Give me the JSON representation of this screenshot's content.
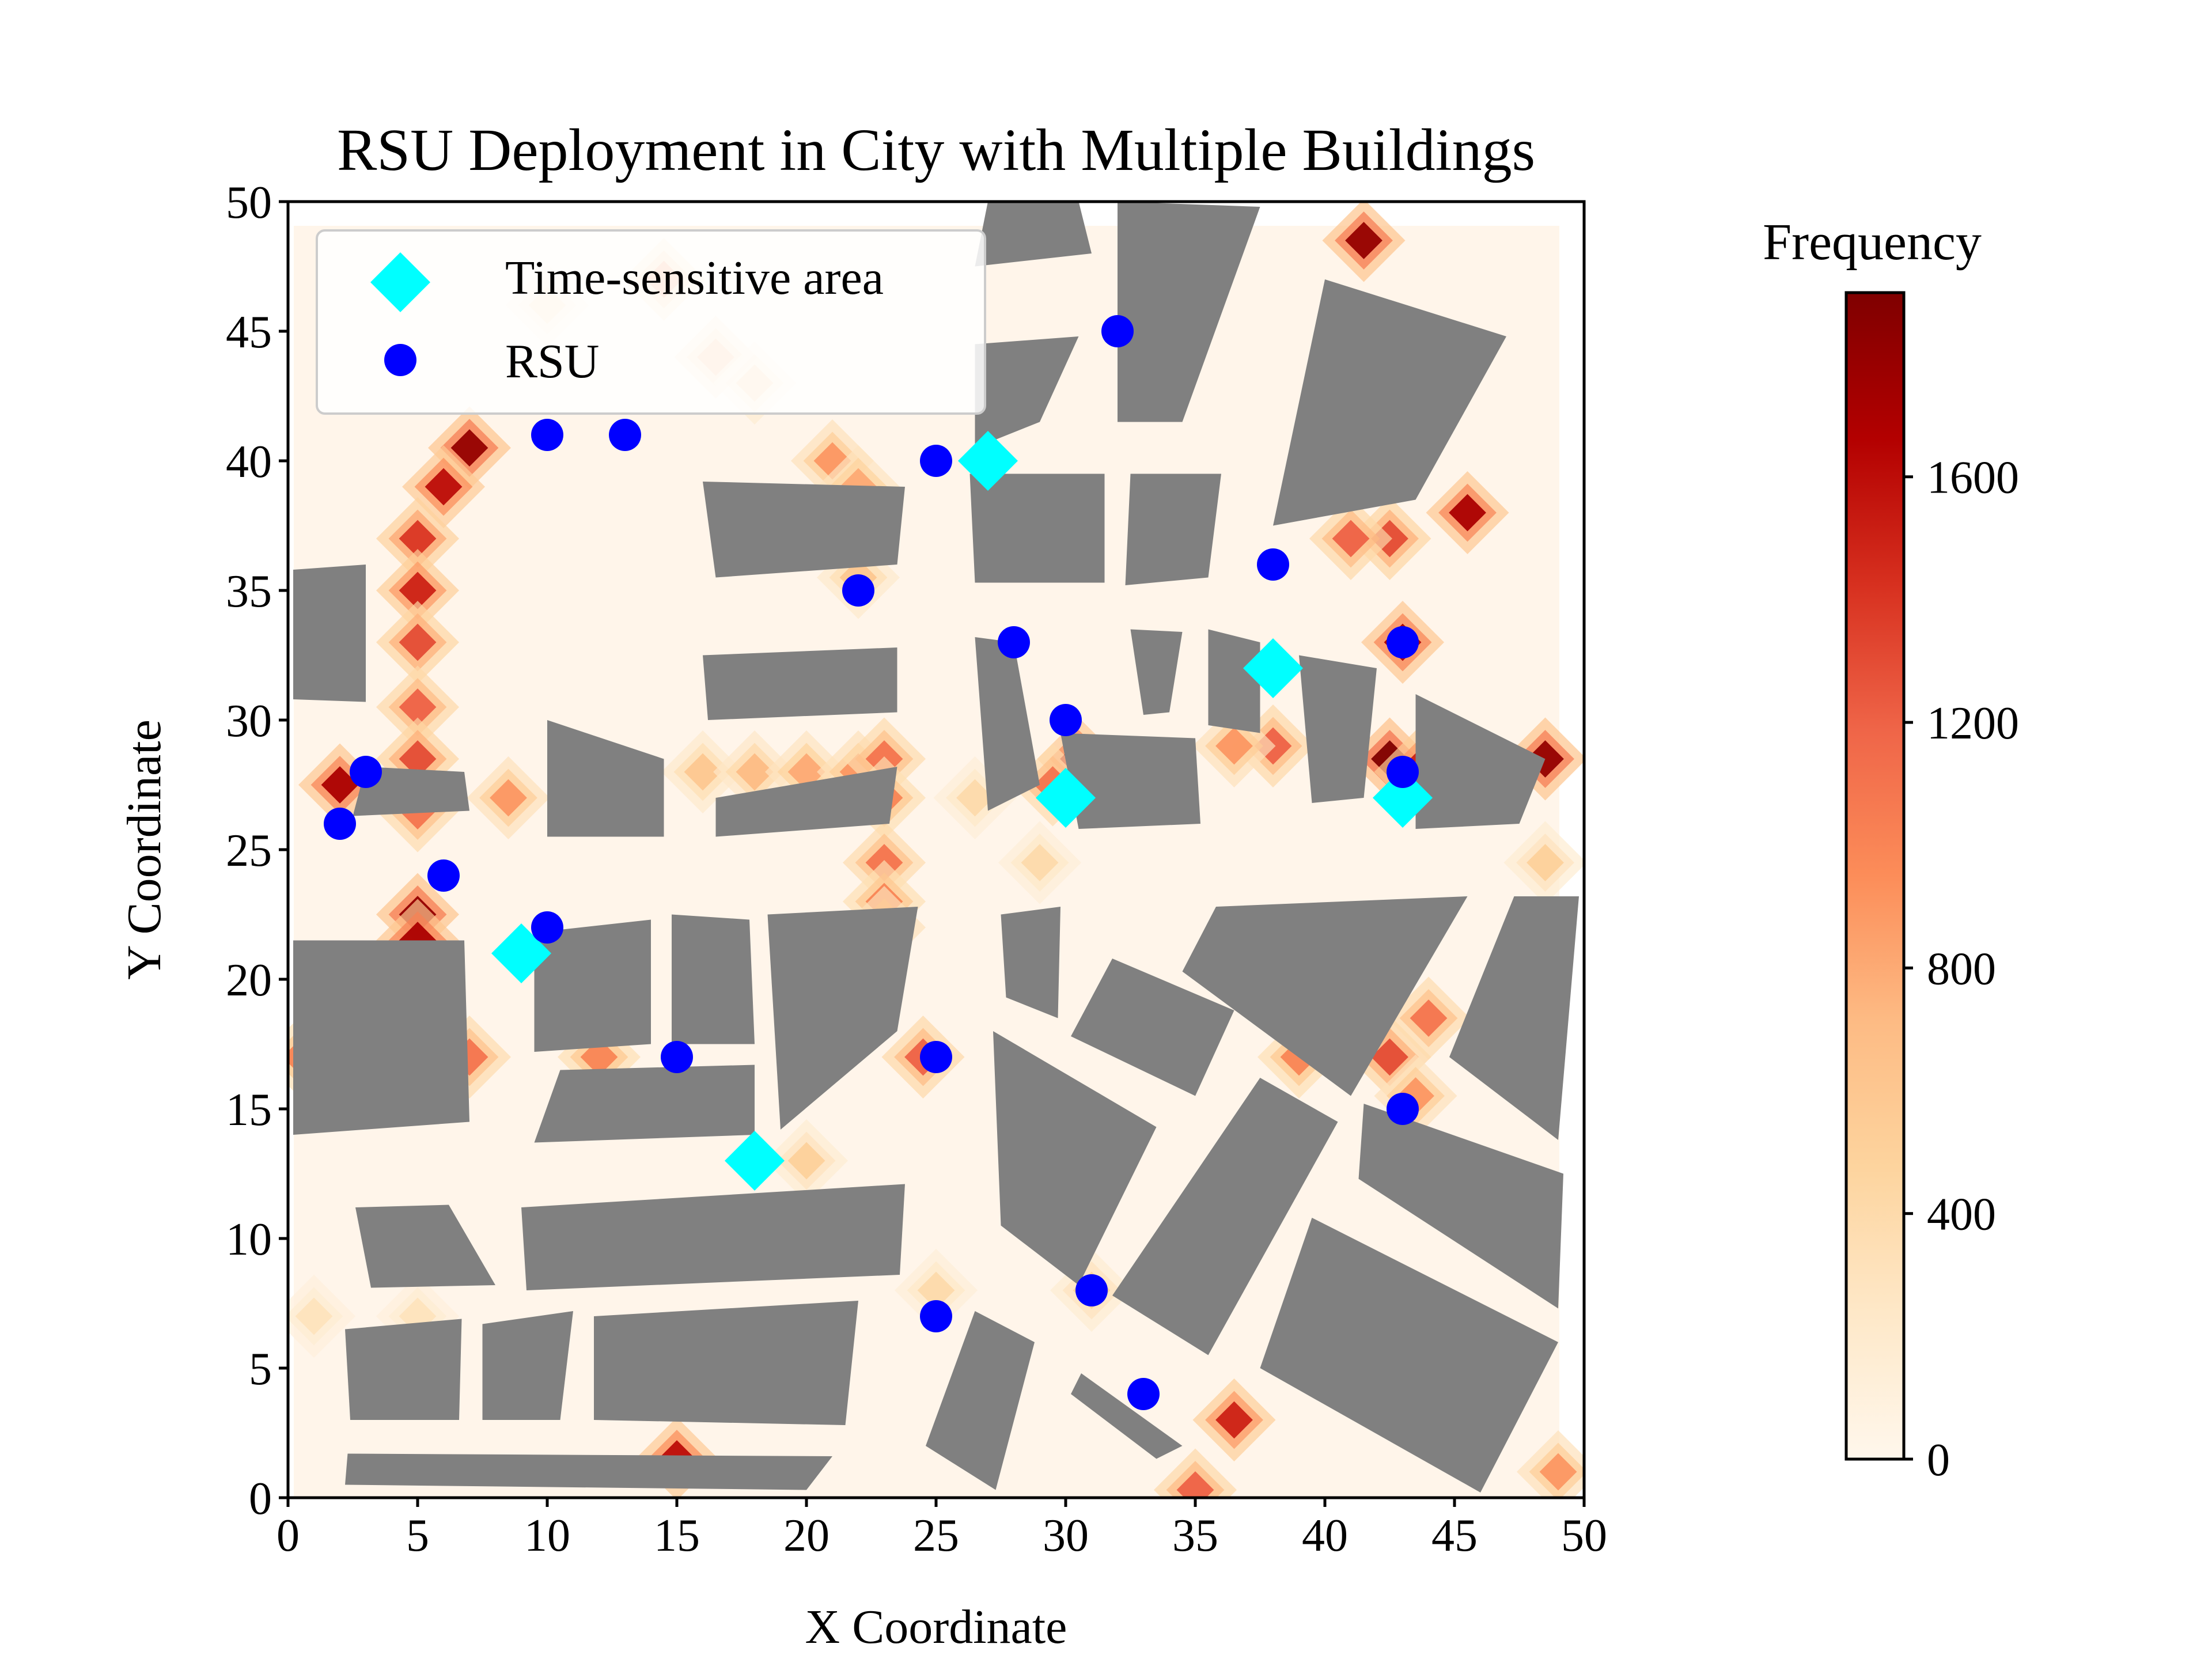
{
  "chart_data": {
    "type": "scatter",
    "title": "RSU Deployment in City with Multiple Buildings",
    "xlabel": "X Coordinate",
    "ylabel": "Y Coordinate",
    "xlim": [
      0,
      50
    ],
    "ylim": [
      0,
      50
    ],
    "x_ticks": [
      "0",
      "5",
      "10",
      "15",
      "20",
      "25",
      "30",
      "35",
      "40",
      "45",
      "50"
    ],
    "y_ticks": [
      "0",
      "5",
      "10",
      "15",
      "20",
      "25",
      "30",
      "35",
      "40",
      "45",
      "50"
    ],
    "grid": false,
    "legend_position": "top-left",
    "series": [
      {
        "name": "Time-sensitive area",
        "marker": "diamond",
        "color": "#00ffff",
        "points": [
          [
            27,
            40
          ],
          [
            38,
            32
          ],
          [
            30,
            27
          ],
          [
            43,
            27
          ],
          [
            9,
            21
          ],
          [
            18,
            13
          ]
        ]
      },
      {
        "name": "RSU",
        "marker": "circle",
        "color": "#0000ff",
        "points": [
          [
            32,
            45
          ],
          [
            10,
            41
          ],
          [
            13,
            41
          ],
          [
            25,
            40
          ],
          [
            22,
            35
          ],
          [
            38,
            36
          ],
          [
            28,
            33
          ],
          [
            43,
            33
          ],
          [
            30,
            30
          ],
          [
            3,
            28
          ],
          [
            43,
            28
          ],
          [
            2,
            26
          ],
          [
            6,
            24
          ],
          [
            10,
            22
          ],
          [
            15,
            17
          ],
          [
            25,
            17
          ],
          [
            43,
            15
          ],
          [
            25,
            7
          ],
          [
            31,
            8
          ],
          [
            33,
            4
          ]
        ]
      }
    ],
    "buildings": {
      "color": "#808080",
      "polygons": [
        [
          [
            26.5,
            47.5
          ],
          [
            31,
            48
          ],
          [
            30.5,
            50
          ],
          [
            27,
            50
          ]
        ],
        [
          [
            32,
            50
          ],
          [
            37.5,
            49.8
          ],
          [
            34.5,
            41.5
          ],
          [
            32,
            41.5
          ]
        ],
        [
          [
            26.5,
            44.5
          ],
          [
            30.5,
            44.8
          ],
          [
            29,
            41.5
          ],
          [
            26.5,
            40.5
          ]
        ],
        [
          [
            40,
            47
          ],
          [
            47,
            44.8
          ],
          [
            43.5,
            38.5
          ],
          [
            38,
            37.5
          ]
        ],
        [
          [
            16,
            39.2
          ],
          [
            23.8,
            39
          ],
          [
            23.5,
            36
          ],
          [
            16.5,
            35.5
          ]
        ],
        [
          [
            26.3,
            39.5
          ],
          [
            31.5,
            39.5
          ],
          [
            31.5,
            35.3
          ],
          [
            26.5,
            35.3
          ]
        ],
        [
          [
            32.5,
            39.5
          ],
          [
            36,
            39.5
          ],
          [
            35.5,
            35.5
          ],
          [
            32.3,
            35.2
          ]
        ],
        [
          [
            0.2,
            35.8
          ],
          [
            3,
            36
          ],
          [
            3,
            30.7
          ],
          [
            0.2,
            30.8
          ]
        ],
        [
          [
            16,
            32.5
          ],
          [
            23.5,
            32.8
          ],
          [
            23.5,
            30.3
          ],
          [
            16.2,
            30
          ]
        ],
        [
          [
            26.5,
            33.2
          ],
          [
            28,
            33
          ],
          [
            29,
            27.5
          ],
          [
            27,
            26.5
          ]
        ],
        [
          [
            32.5,
            33.5
          ],
          [
            34.5,
            33.4
          ],
          [
            34,
            30.3
          ],
          [
            33,
            30.2
          ]
        ],
        [
          [
            35.5,
            33.5
          ],
          [
            37.5,
            33
          ],
          [
            37.5,
            29.5
          ],
          [
            35.5,
            29.8
          ]
        ],
        [
          [
            39,
            32.5
          ],
          [
            42,
            32
          ],
          [
            41.5,
            27
          ],
          [
            39.5,
            26.8
          ]
        ],
        [
          [
            43.5,
            31
          ],
          [
            48.5,
            28.5
          ],
          [
            47.5,
            26
          ],
          [
            43.5,
            25.8
          ]
        ],
        [
          [
            3,
            28.2
          ],
          [
            6.8,
            28
          ],
          [
            7,
            26.5
          ],
          [
            2.5,
            26.3
          ]
        ],
        [
          [
            10,
            30
          ],
          [
            14.5,
            28.5
          ],
          [
            14.5,
            25.5
          ],
          [
            10,
            25.5
          ]
        ],
        [
          [
            16.5,
            27
          ],
          [
            23.5,
            28.2
          ],
          [
            23.2,
            26
          ],
          [
            16.5,
            25.5
          ]
        ],
        [
          [
            29.8,
            29.5
          ],
          [
            35,
            29.3
          ],
          [
            35.2,
            26
          ],
          [
            30.5,
            25.8
          ]
        ],
        [
          [
            0.2,
            21.5
          ],
          [
            6.8,
            21.5
          ],
          [
            7,
            14.5
          ],
          [
            0.2,
            14
          ]
        ],
        [
          [
            9.5,
            21.8
          ],
          [
            14,
            22.3
          ],
          [
            14,
            17.5
          ],
          [
            9.5,
            17.2
          ]
        ],
        [
          [
            14.8,
            22.5
          ],
          [
            17.8,
            22.3
          ],
          [
            18,
            17.5
          ],
          [
            14.8,
            17.5
          ]
        ],
        [
          [
            18.5,
            22.5
          ],
          [
            24.3,
            22.8
          ],
          [
            23.5,
            18
          ],
          [
            19,
            14.2
          ]
        ],
        [
          [
            27.5,
            22.5
          ],
          [
            29.8,
            22.8
          ],
          [
            29.7,
            18.5
          ],
          [
            27.7,
            19.3
          ]
        ],
        [
          [
            31.8,
            20.8
          ],
          [
            36.5,
            18.8
          ],
          [
            35,
            15.5
          ],
          [
            30.2,
            17.8
          ]
        ],
        [
          [
            35.8,
            22.8
          ],
          [
            45.5,
            23.2
          ],
          [
            41,
            15.5
          ],
          [
            34.5,
            20.3
          ]
        ],
        [
          [
            47.3,
            23.2
          ],
          [
            49.8,
            23.2
          ],
          [
            49,
            13.8
          ],
          [
            44.8,
            17
          ]
        ],
        [
          [
            10.5,
            16.5
          ],
          [
            18,
            16.7
          ],
          [
            18,
            14
          ],
          [
            9.5,
            13.7
          ]
        ],
        [
          [
            27.2,
            18
          ],
          [
            33.5,
            14.3
          ],
          [
            30.5,
            8.2
          ],
          [
            27.5,
            10.5
          ]
        ],
        [
          [
            37.5,
            16.2
          ],
          [
            40.5,
            14.5
          ],
          [
            35.5,
            5.5
          ],
          [
            31.8,
            7.8
          ]
        ],
        [
          [
            41.5,
            15.2
          ],
          [
            49.2,
            12.5
          ],
          [
            49,
            7.3
          ],
          [
            41.3,
            12.3
          ]
        ],
        [
          [
            2.6,
            11.2
          ],
          [
            6.2,
            11.3
          ],
          [
            8,
            8.2
          ],
          [
            3.2,
            8.1
          ]
        ],
        [
          [
            9,
            11.2
          ],
          [
            23.8,
            12.1
          ],
          [
            23.6,
            8.6
          ],
          [
            9.2,
            8
          ]
        ],
        [
          [
            2.2,
            6.5
          ],
          [
            6.7,
            6.9
          ],
          [
            6.6,
            3
          ],
          [
            2.4,
            3
          ]
        ],
        [
          [
            7.5,
            6.7
          ],
          [
            11,
            7.2
          ],
          [
            10.5,
            3
          ],
          [
            7.5,
            3
          ]
        ],
        [
          [
            11.8,
            7
          ],
          [
            22,
            7.6
          ],
          [
            21.5,
            2.8
          ],
          [
            11.8,
            3
          ]
        ],
        [
          [
            26.5,
            7.2
          ],
          [
            28.8,
            6
          ],
          [
            27.3,
            0.3
          ],
          [
            24.6,
            2
          ]
        ],
        [
          [
            30.6,
            4.8
          ],
          [
            34.5,
            2
          ],
          [
            33.5,
            1.5
          ],
          [
            30.2,
            4
          ]
        ],
        [
          [
            39.5,
            10.8
          ],
          [
            49,
            6
          ],
          [
            46,
            0.2
          ],
          [
            37.5,
            5
          ]
        ],
        [
          [
            2.3,
            1.7
          ],
          [
            21,
            1.6
          ],
          [
            20,
            0.3
          ],
          [
            2.2,
            0.5
          ]
        ]
      ]
    },
    "heatmap": {
      "colormap": "OrRd",
      "colorbar_label": "Frequency",
      "colorbar_ticks": [
        "0",
        "400",
        "800",
        "1200",
        "1600"
      ],
      "vmin": 0,
      "vmax": 1900,
      "hotspots": [
        [
          41.5,
          48.5,
          1800
        ],
        [
          45.5,
          38,
          1700
        ],
        [
          42.5,
          37,
          1300
        ],
        [
          41,
          37,
          1200
        ],
        [
          43,
          33,
          1700
        ],
        [
          48.5,
          28.5,
          1800
        ],
        [
          42.5,
          28.5,
          1900
        ],
        [
          43.5,
          28,
          1500
        ],
        [
          30.5,
          28.5,
          1600
        ],
        [
          38,
          29,
          1200
        ],
        [
          36.5,
          29,
          900
        ],
        [
          29.5,
          27.5,
          1100
        ],
        [
          7,
          40.5,
          1800
        ],
        [
          6,
          39,
          1600
        ],
        [
          5,
          37,
          1400
        ],
        [
          5,
          35,
          1500
        ],
        [
          5,
          33,
          1300
        ],
        [
          5,
          30.5,
          1200
        ],
        [
          5,
          28.5,
          1300
        ],
        [
          5,
          26.5,
          1100
        ],
        [
          2,
          27.5,
          1700
        ],
        [
          5,
          22.5,
          1800
        ],
        [
          5,
          21.5,
          1700
        ],
        [
          8.5,
          27,
          900
        ],
        [
          16,
          28,
          600
        ],
        [
          18,
          28,
          700
        ],
        [
          20,
          28,
          800
        ],
        [
          22,
          28,
          900
        ],
        [
          23,
          28.5,
          1100
        ],
        [
          23,
          27,
          1000
        ],
        [
          23,
          24.5,
          1100
        ],
        [
          23,
          23,
          1000
        ],
        [
          23,
          22,
          900
        ],
        [
          22,
          35.5,
          600
        ],
        [
          21,
          40,
          900
        ],
        [
          22,
          39,
          800
        ],
        [
          7,
          17,
          1100
        ],
        [
          0.5,
          17,
          1000
        ],
        [
          12,
          17,
          1000
        ],
        [
          24.5,
          17,
          1200
        ],
        [
          42.5,
          17,
          1300
        ],
        [
          44,
          18.5,
          1100
        ],
        [
          39,
          17,
          1000
        ],
        [
          43.5,
          15.5,
          900
        ],
        [
          36.5,
          3,
          1500
        ],
        [
          15,
          1.5,
          1600
        ],
        [
          35,
          0.3,
          1200
        ],
        [
          49,
          1,
          900
        ],
        [
          48.5,
          24.5,
          500
        ],
        [
          14.5,
          47,
          900
        ],
        [
          16.5,
          44,
          700
        ],
        [
          18,
          43,
          500
        ],
        [
          10,
          46,
          400
        ],
        [
          20,
          13,
          500
        ],
        [
          25,
          8,
          400
        ],
        [
          31,
          8,
          500
        ],
        [
          1,
          7,
          300
        ],
        [
          5,
          7,
          300
        ],
        [
          29,
          24.5,
          400
        ],
        [
          26.5,
          27,
          400
        ]
      ]
    }
  }
}
